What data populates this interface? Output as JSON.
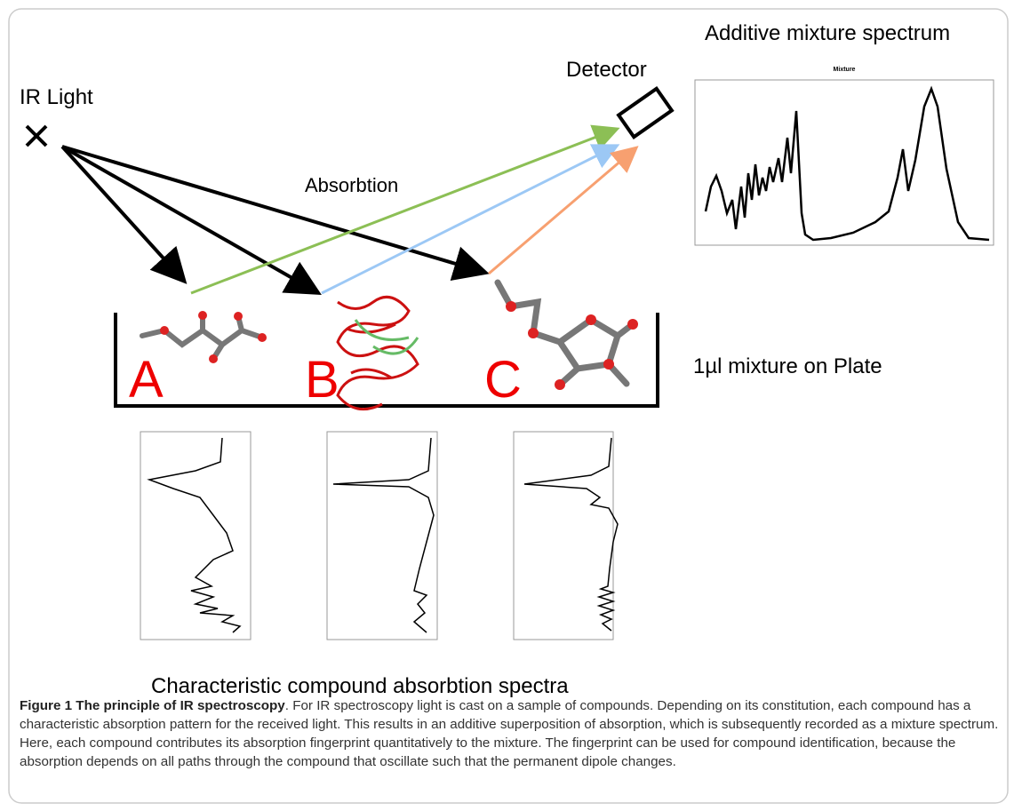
{
  "figure": {
    "title": "Additive mixture spectrum",
    "source_label": "IR Light",
    "detector_label": "Detector",
    "absorption_label": "Absorbtion",
    "mixture_plot_title": "Mixture",
    "compounds": [
      "A",
      "B",
      "C"
    ],
    "plate_label": "1µl mixture on Plate",
    "spectra_label": "Characteristic compound absorbtion spectra"
  },
  "caption": {
    "label": "Figure 1 The principle of IR spectroscopy",
    "text": ". For IR spectroscopy light is cast on a sample of compounds. Depending on its constitution, each compound has a characteristic absorption pattern for the received light. This results in an additive superposition of absorption, which is subsequently recorded as a mixture spectrum. Here, each compound contributes its absorption fingerprint quantitatively to the mixture. The fingerprint can be used for compound identification, because the absorption depends on all paths through the compound that oscillate such that the permanent dipole changes."
  }
}
